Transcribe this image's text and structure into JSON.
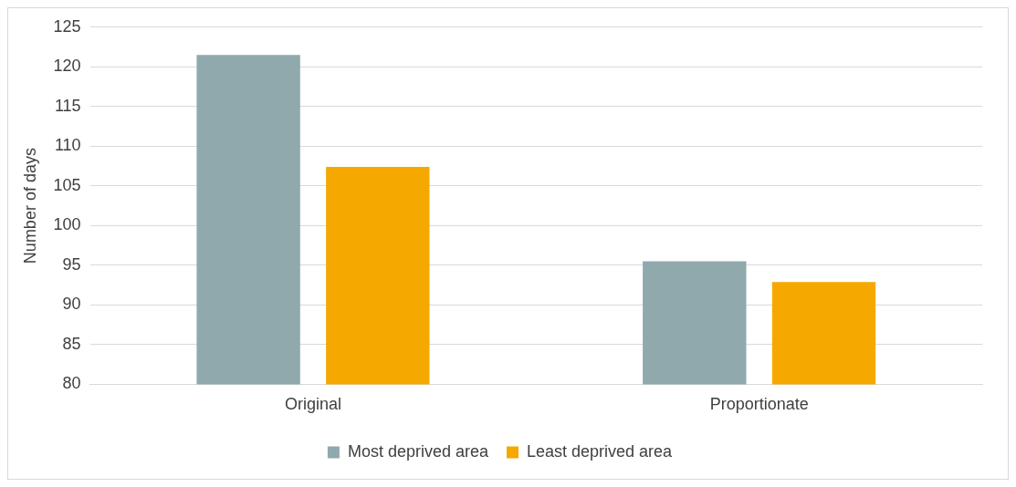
{
  "chart_data": {
    "type": "bar",
    "ylabel": "Number of days",
    "categories": [
      "Original",
      "Proportionate"
    ],
    "series": [
      {
        "name": "Most deprived area",
        "color": "#8fa9ad",
        "values": [
          121.5,
          95.5
        ]
      },
      {
        "name": "Least deprived area",
        "color": "#f5a800",
        "values": [
          107.4,
          92.9
        ]
      }
    ],
    "ylim": [
      80,
      125
    ],
    "yticks": [
      80,
      85,
      90,
      95,
      100,
      105,
      110,
      115,
      120,
      125
    ],
    "grid": "y",
    "legend": "bottom"
  }
}
